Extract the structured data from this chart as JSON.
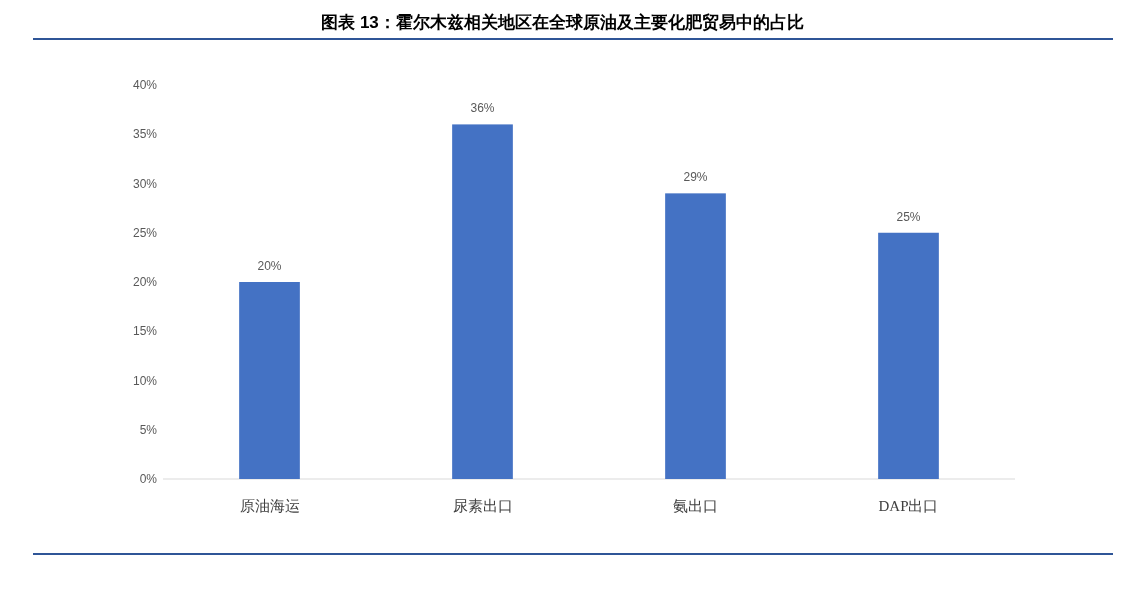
{
  "chart_data": {
    "type": "bar",
    "title": "图表 13：霍尔木兹相关地区在全球原油及主要化肥贸易中的占比",
    "categories": [
      "原油海运",
      "尿素出口",
      "氨出口",
      "DAP出口"
    ],
    "values": [
      20,
      36,
      29,
      25
    ],
    "value_labels": [
      "20%",
      "36%",
      "29%",
      "25%"
    ],
    "color": "#4472c4",
    "ylim": [
      0,
      40
    ],
    "yticks": [
      {
        "value": 0,
        "label": "0%"
      },
      {
        "value": 5,
        "label": "5%"
      },
      {
        "value": 10,
        "label": "10%"
      },
      {
        "value": 15,
        "label": "15%"
      },
      {
        "value": 20,
        "label": "20%"
      },
      {
        "value": 25,
        "label": "25%"
      },
      {
        "value": 30,
        "label": "30%"
      },
      {
        "value": 35,
        "label": "35%"
      },
      {
        "value": 40,
        "label": "40%"
      }
    ],
    "grid": false
  }
}
